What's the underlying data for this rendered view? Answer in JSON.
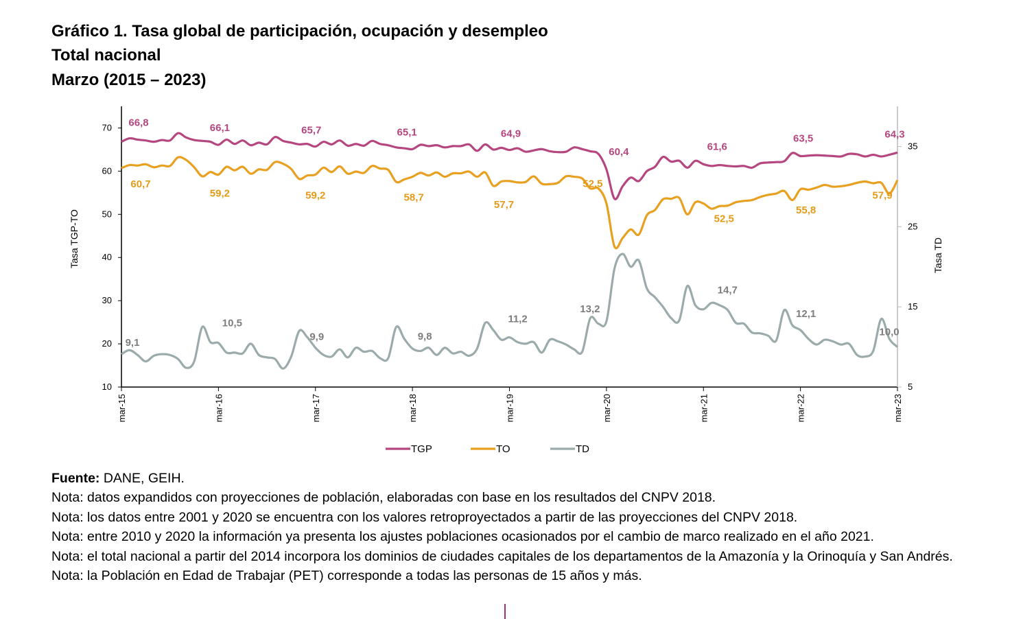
{
  "title": {
    "line1": "Gráfico 1. Tasa global de participación, ocupación y desempleo",
    "line2": "Total nacional",
    "line3": "Marzo (2015 – 2023)"
  },
  "chart_data": {
    "type": "line",
    "x_tick_labels": [
      "mar-15",
      "mar-16",
      "mar-17",
      "mar-18",
      "mar-19",
      "mar-20",
      "mar-21",
      "mar-22",
      "mar-23"
    ],
    "x_range": [
      "mar-15",
      "mar-23"
    ],
    "x_frequency": "monthly",
    "ylabel_left": "Tasa TGP-TO",
    "ylabel_right": "Tasa TD",
    "ylim_left": [
      10,
      75
    ],
    "ylim_right": [
      5,
      40
    ],
    "yticks_left": [
      10,
      20,
      30,
      40,
      50,
      60,
      70
    ],
    "yticks_right": [
      5,
      15,
      25,
      35
    ],
    "grid": false,
    "legend_position": "bottom",
    "colors": {
      "TGP": "#B5467F",
      "TO": "#E8A020",
      "TD": "#9BAAAA"
    },
    "series": [
      {
        "name": "TGP",
        "axis": "left",
        "values": [
          66.8,
          67.6,
          67.3,
          67.1,
          66.8,
          67.2,
          67.1,
          68.8,
          67.8,
          67.2,
          67.0,
          66.8,
          66.1,
          67.3,
          66.3,
          67.1,
          66.0,
          66.6,
          66.2,
          67.9,
          67.0,
          66.6,
          66.2,
          66.3,
          65.7,
          66.8,
          66.2,
          67.1,
          65.9,
          66.3,
          65.9,
          67.0,
          66.3,
          66.0,
          65.5,
          65.3,
          65.1,
          66.1,
          65.8,
          66.0,
          65.5,
          65.8,
          65.8,
          66.2,
          64.7,
          66.2,
          65.0,
          65.4,
          64.9,
          65.3,
          64.5,
          64.8,
          65.1,
          64.6,
          64.4,
          64.5,
          65.5,
          65.1,
          64.6,
          64.0,
          60.4,
          53.6,
          56.5,
          58.5,
          57.7,
          60.0,
          61.0,
          63.3,
          62.2,
          62.4,
          60.8,
          62.4,
          61.6,
          61.2,
          61.4,
          61.2,
          61.1,
          61.2,
          60.8,
          61.8,
          62.0,
          62.1,
          62.3,
          64.2,
          63.5,
          63.6,
          63.7,
          63.6,
          63.5,
          63.4,
          64.0,
          63.9,
          63.4,
          63.8,
          63.4,
          63.8,
          64.3
        ]
      },
      {
        "name": "TO",
        "axis": "left",
        "values": [
          60.7,
          61.4,
          61.3,
          61.6,
          60.9,
          61.3,
          61.2,
          63.2,
          62.6,
          60.9,
          58.8,
          59.8,
          59.2,
          61.0,
          60.2,
          61.0,
          59.4,
          60.4,
          60.3,
          62.1,
          61.7,
          60.5,
          58.2,
          59.0,
          59.2,
          60.8,
          59.8,
          61.1,
          59.4,
          59.9,
          59.6,
          61.2,
          60.6,
          60.3,
          57.5,
          58.1,
          58.7,
          59.6,
          59.0,
          59.7,
          58.7,
          59.5,
          59.5,
          59.9,
          58.7,
          59.7,
          56.6,
          57.6,
          57.7,
          57.4,
          57.5,
          58.8,
          57.1,
          57.0,
          57.3,
          58.8,
          58.7,
          58.3,
          56.0,
          56.0,
          52.5,
          42.5,
          44.5,
          46.5,
          45.3,
          49.8,
          51.0,
          53.5,
          53.6,
          53.8,
          50.0,
          52.8,
          52.5,
          51.3,
          51.9,
          52.0,
          52.8,
          53.1,
          53.3,
          54.0,
          54.5,
          54.8,
          55.4,
          53.3,
          55.8,
          55.7,
          56.2,
          56.8,
          56.4,
          56.5,
          56.8,
          57.3,
          57.6,
          57.2,
          57.3,
          54.8,
          57.9
        ]
      },
      {
        "name": "TD",
        "axis": "right",
        "values": [
          9.1,
          9.6,
          9.0,
          8.2,
          8.9,
          9.1,
          9.0,
          8.5,
          7.4,
          8.2,
          12.5,
          10.6,
          10.5,
          9.3,
          9.3,
          9.2,
          10.4,
          9.0,
          8.7,
          8.5,
          7.3,
          8.8,
          12.0,
          11.2,
          9.9,
          9.0,
          8.8,
          9.7,
          8.7,
          9.9,
          9.4,
          9.5,
          8.6,
          8.6,
          12.5,
          11.0,
          9.8,
          9.5,
          9.9,
          9.0,
          9.9,
          9.2,
          9.4,
          8.9,
          9.8,
          13.0,
          12.1,
          10.9,
          11.2,
          10.6,
          10.4,
          10.6,
          9.3,
          10.9,
          10.7,
          10.3,
          9.7,
          9.4,
          13.6,
          12.9,
          13.2,
          19.8,
          21.6,
          20.0,
          20.8,
          17.3,
          16.2,
          15.0,
          13.6,
          13.3,
          17.6,
          15.2,
          14.7,
          15.5,
          15.2,
          14.6,
          13.0,
          12.9,
          11.8,
          11.7,
          11.4,
          10.8,
          14.6,
          12.7,
          12.1,
          11.0,
          10.3,
          10.9,
          10.7,
          10.3,
          10.4,
          9.0,
          8.8,
          9.5,
          13.5,
          11.0,
          10.0
        ]
      }
    ],
    "data_labels": {
      "TGP": [
        "66,8",
        "66,1",
        "65,7",
        "65,1",
        "64,9",
        "60,4",
        "61,6",
        "63,5",
        "64,3"
      ],
      "TO": [
        "60,7",
        "59,2",
        "59,2",
        "58,7",
        "57,7",
        "52,5",
        "52,5",
        "55,8",
        "57,9"
      ],
      "TD": [
        "9,1",
        "10,5",
        "9,9",
        "9,8",
        "11,2",
        "13,2",
        "14,7",
        "12,1",
        "10,0"
      ]
    }
  },
  "notes": {
    "source_label": "Fuente:",
    "source_text": " DANE, GEIH.",
    "lines": [
      "Nota: datos expandidos con proyecciones de población, elaboradas con base en los resultados del CNPV 2018.",
      "Nota: los datos entre 2001 y 2020 se encuentra con los valores retroproyectados a partir de las proyecciones del CNPV 2018.",
      "Nota: entre 2010 y 2020 la información ya presenta los ajustes poblaciones ocasionados por el cambio de marco realizado en el año 2021.",
      "Nota: el total nacional a partir del 2014 incorpora los dominios de ciudades capitales de los departamentos de la Amazonía y la Orinoquía y San Andrés.",
      "Nota: la Población en Edad de Trabajar (PET) corresponde a todas las personas de 15 años y más."
    ]
  }
}
